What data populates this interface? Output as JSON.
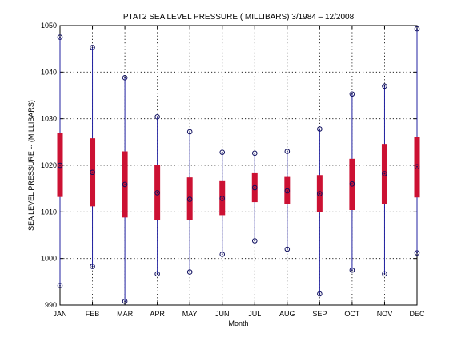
{
  "chart_data": {
    "type": "boxplot",
    "title": "PTAT2  SEA LEVEL PRESSURE ( MILLIBARS) 3/1984 – 12/2008",
    "xlabel": "Month",
    "ylabel": "SEA LEVEL PRESSURE -- (MILLIBARS)",
    "ylim": [
      990,
      1050
    ],
    "yticks": [
      990,
      1000,
      1010,
      1020,
      1030,
      1040,
      1050
    ],
    "grid": true,
    "categories": [
      "JAN",
      "FEB",
      "MAR",
      "APR",
      "MAY",
      "JUN",
      "JUL",
      "AUG",
      "SEP",
      "OCT",
      "NOV",
      "DEC"
    ],
    "series": [
      {
        "min": 994.2,
        "q1": 1013.2,
        "median": 1020.0,
        "q3": 1027.0,
        "max": 1047.5
      },
      {
        "min": 998.3,
        "q1": 1011.2,
        "median": 1018.5,
        "q3": 1025.8,
        "max": 1045.3
      },
      {
        "min": 990.8,
        "q1": 1008.8,
        "median": 1015.9,
        "q3": 1023.0,
        "max": 1038.8
      },
      {
        "min": 996.7,
        "q1": 1008.2,
        "median": 1014.1,
        "q3": 1020.0,
        "max": 1030.4
      },
      {
        "min": 997.1,
        "q1": 1008.3,
        "median": 1012.7,
        "q3": 1017.4,
        "max": 1027.2
      },
      {
        "min": 1000.9,
        "q1": 1009.3,
        "median": 1012.9,
        "q3": 1016.6,
        "max": 1022.8
      },
      {
        "min": 1003.8,
        "q1": 1012.1,
        "median": 1015.2,
        "q3": 1018.3,
        "max": 1022.6
      },
      {
        "min": 1002.0,
        "q1": 1011.6,
        "median": 1014.5,
        "q3": 1017.5,
        "max": 1023.0
      },
      {
        "min": 992.4,
        "q1": 1009.9,
        "median": 1013.9,
        "q3": 1017.9,
        "max": 1027.8
      },
      {
        "min": 997.5,
        "q1": 1010.4,
        "median": 1016.0,
        "q3": 1021.4,
        "max": 1035.3
      },
      {
        "min": 996.7,
        "q1": 1011.6,
        "median": 1018.2,
        "q3": 1024.6,
        "max": 1037.0
      },
      {
        "min": 1001.2,
        "q1": 1013.1,
        "median": 1019.7,
        "q3": 1026.1,
        "max": 1049.3
      }
    ],
    "colors": {
      "whisker": "#2020a0",
      "box": "#cc1133",
      "marker": "#101060",
      "grid": "#000000"
    }
  }
}
